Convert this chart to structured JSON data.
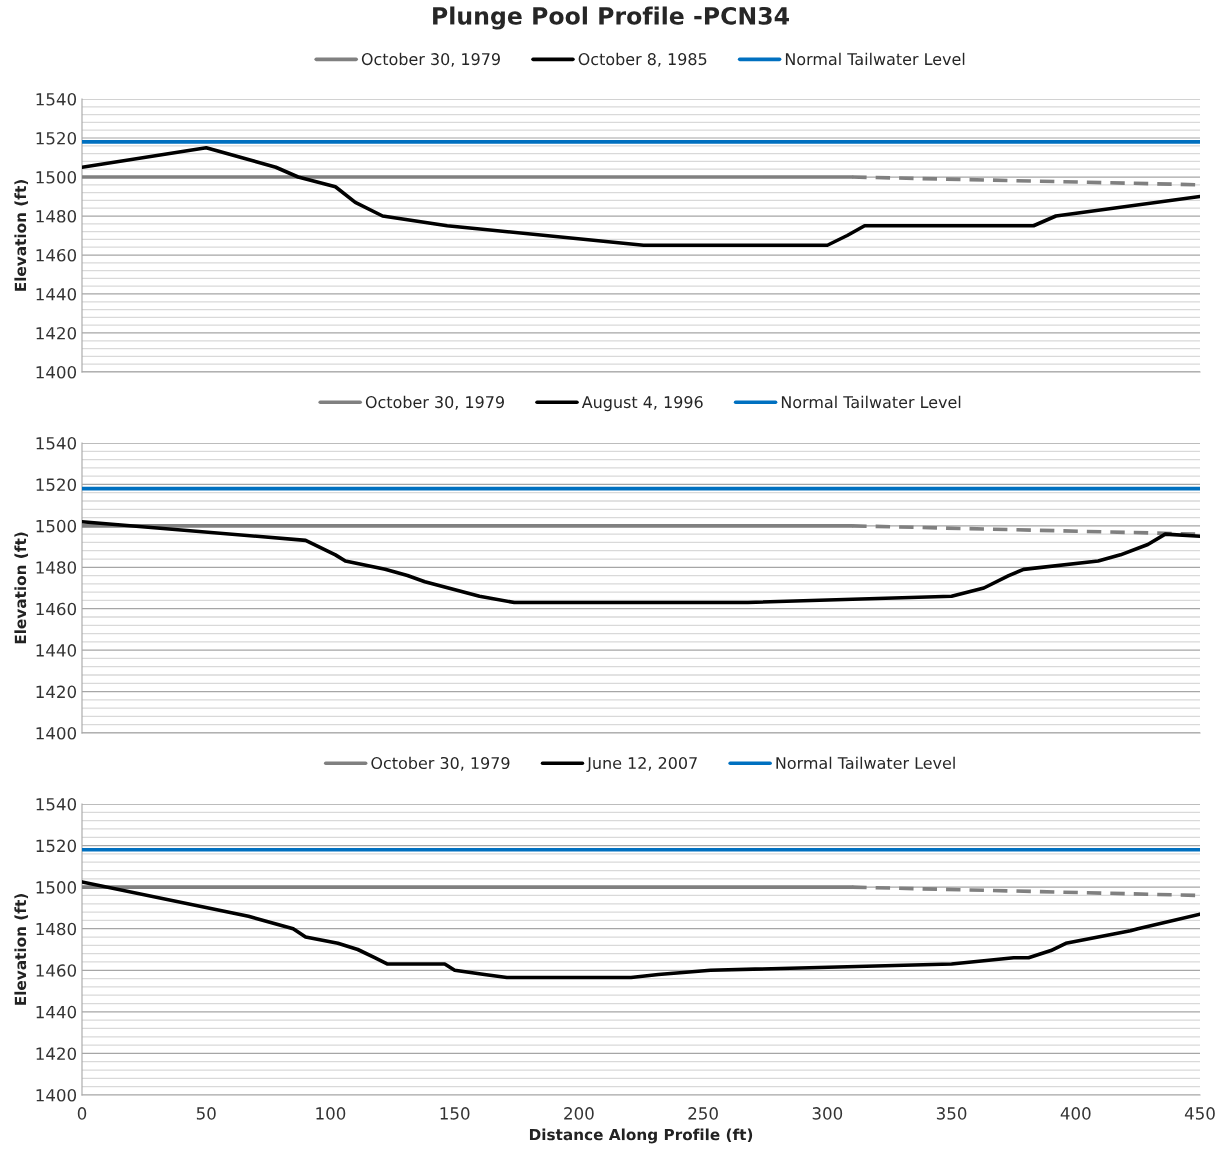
{
  "chart_data": [
    {
      "type": "line",
      "title": "Plunge Pool Profile -PCN34",
      "ylabel": "Elevation (ft)",
      "xlim": [
        0,
        450
      ],
      "xticks": [
        0,
        50,
        100,
        150,
        200,
        250,
        300,
        350,
        400,
        450
      ],
      "ylim": [
        1400,
        1540
      ],
      "yticks": [
        1400,
        1420,
        1440,
        1460,
        1480,
        1500,
        1520,
        1540
      ],
      "tick_labels": "y",
      "grid": "y",
      "legend": "top",
      "series": [
        {
          "name": "October 30, 1979",
          "color": "#808080",
          "line_style": "solid",
          "x": [
            0,
            310
          ],
          "values": [
            1500,
            1500
          ]
        },
        {
          "color": "#808080",
          "line_style": "dashed",
          "x": [
            310,
            450
          ],
          "values": [
            1500,
            1496
          ]
        },
        {
          "name": "October 8, 1985",
          "color": "#000000",
          "line_style": "solid",
          "x": [
            0,
            50,
            78,
            87,
            102,
            110,
            121,
            147,
            226,
            300,
            308,
            315,
            383,
            392,
            450
          ],
          "values": [
            1505,
            1515,
            1505,
            1500,
            1495,
            1487,
            1480,
            1475,
            1465,
            1465,
            1470,
            1475,
            1475,
            1480,
            1490
          ]
        },
        {
          "name": "Normal Tailwater Level",
          "color": "#0070c0",
          "line_style": "solid",
          "x": [
            0,
            450
          ],
          "values": [
            1518,
            1518
          ]
        }
      ]
    },
    {
      "type": "line",
      "ylabel": "Elevation (ft)",
      "xlim": [
        0,
        450
      ],
      "xticks": [
        0,
        50,
        100,
        150,
        200,
        250,
        300,
        350,
        400,
        450
      ],
      "ylim": [
        1400,
        1540
      ],
      "yticks": [
        1400,
        1420,
        1440,
        1460,
        1480,
        1500,
        1520,
        1540
      ],
      "tick_labels": "y",
      "grid": "y",
      "legend": "top",
      "series": [
        {
          "name": "October 30, 1979",
          "color": "#808080",
          "line_style": "solid",
          "x": [
            0,
            310
          ],
          "values": [
            1500,
            1500
          ]
        },
        {
          "color": "#808080",
          "line_style": "dashed",
          "x": [
            310,
            450
          ],
          "values": [
            1500,
            1496
          ]
        },
        {
          "name": "August 4, 1996",
          "color": "#000000",
          "line_style": "solid",
          "x": [
            0,
            90,
            102,
            106,
            122,
            131,
            138,
            160,
            174,
            268,
            350,
            363,
            373,
            379,
            409,
            418,
            429,
            436,
            450
          ],
          "values": [
            1502,
            1493,
            1486,
            1483,
            1479,
            1476,
            1473,
            1466,
            1463,
            1463,
            1466,
            1470,
            1476,
            1479,
            1483,
            1486,
            1491,
            1496,
            1495
          ]
        },
        {
          "name": "Normal Tailwater Level",
          "color": "#0070c0",
          "line_style": "solid",
          "x": [
            0,
            450
          ],
          "values": [
            1518,
            1518
          ]
        }
      ]
    },
    {
      "type": "line",
      "xlabel": "Distance Along Profile (ft)",
      "ylabel": "Elevation (ft)",
      "xlim": [
        0,
        450
      ],
      "xticks": [
        0,
        50,
        100,
        150,
        200,
        250,
        300,
        350,
        400,
        450
      ],
      "ylim": [
        1400,
        1540
      ],
      "yticks": [
        1400,
        1420,
        1440,
        1460,
        1480,
        1500,
        1520,
        1540
      ],
      "grid": "y",
      "legend": "top",
      "series": [
        {
          "name": "October 30, 1979",
          "color": "#808080",
          "line_style": "solid",
          "x": [
            0,
            310
          ],
          "values": [
            1500,
            1500
          ]
        },
        {
          "color": "#808080",
          "line_style": "dashed",
          "x": [
            310,
            450
          ],
          "values": [
            1500,
            1496
          ]
        },
        {
          "name": "June 12, 2007",
          "color": "#000000",
          "line_style": "solid",
          "x": [
            0,
            67,
            85,
            90,
            103,
            111,
            118,
            123,
            146,
            150,
            162,
            171,
            221,
            232,
            253,
            350,
            375,
            381,
            390,
            396,
            422,
            425,
            450
          ],
          "values": [
            1502.5,
            1486,
            1480,
            1476,
            1473,
            1470,
            1466,
            1463,
            1463,
            1460,
            1458,
            1456.5,
            1456.5,
            1458,
            1460,
            1463,
            1466,
            1466,
            1469.5,
            1473,
            1479,
            1480,
            1487
          ]
        },
        {
          "name": "Normal Tailwater Level",
          "color": "#0070c0",
          "line_style": "solid",
          "x": [
            0,
            450
          ],
          "values": [
            1518,
            1518
          ]
        }
      ]
    }
  ]
}
